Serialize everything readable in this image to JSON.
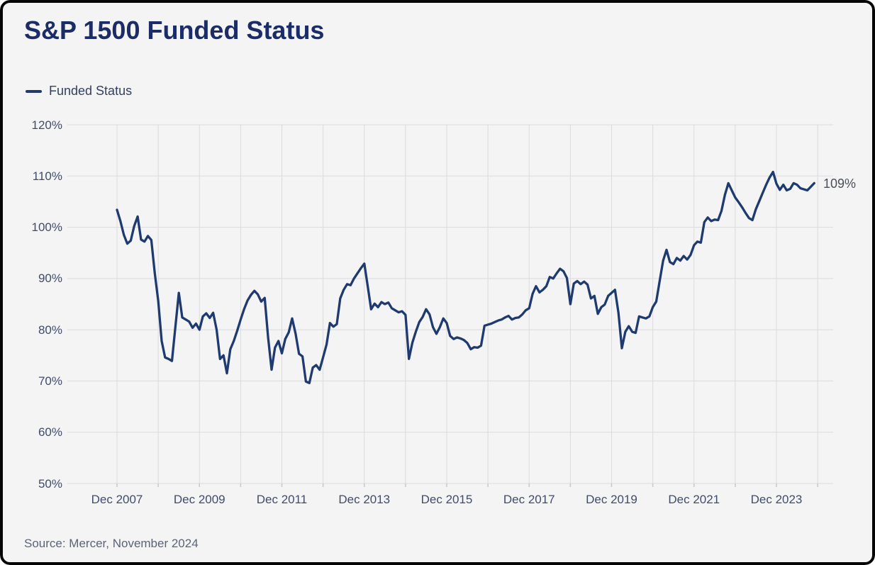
{
  "card": {
    "title": "S&P 1500 Funded Status",
    "source": "Source: Mercer, November 2024"
  },
  "legend": {
    "label": "Funded Status"
  },
  "colors": {
    "line": "#1e3a6e",
    "title": "#1b2c66",
    "axis_label": "#404c6b",
    "grid": "#dbdbde",
    "tick": "#c7c9cd",
    "end_label": "#4b4f58",
    "background": "#f4f4f5",
    "border": "#060606"
  },
  "chart_data": {
    "type": "line",
    "title": "S&P 1500 Funded Status",
    "x_start": "Dec 2007",
    "x_end": "Nov 2024",
    "x_frequency": "monthly",
    "x_tick_labels": [
      "Dec 2007",
      "Dec 2009",
      "Dec 2011",
      "Dec 2013",
      "Dec 2015",
      "Dec 2017",
      "Dec 2019",
      "Dec 2021",
      "Dec 2023"
    ],
    "x_tick_month_indices": [
      0,
      24,
      48,
      72,
      96,
      120,
      144,
      168,
      192
    ],
    "year_gridline_step_months": 12,
    "y_tick_labels": [
      "120%",
      "110%",
      "100%",
      "90%",
      "80%",
      "70%",
      "60%",
      "50%"
    ],
    "ylim": [
      50,
      120
    ],
    "grid": true,
    "legend_position": "top-left",
    "end_label": "109%",
    "series": [
      {
        "name": "Funded Status",
        "color": "#1e3a6e",
        "values": [
          103.4,
          101.2,
          98.5,
          96.8,
          97.4,
          100.2,
          102.1,
          97.6,
          97.2,
          98.3,
          97.5,
          91.0,
          85.7,
          77.8,
          74.6,
          74.3,
          73.9,
          80.5,
          87.2,
          82.4,
          82.0,
          81.6,
          80.4,
          81.2,
          80.0,
          82.6,
          83.2,
          82.3,
          83.3,
          80.0,
          74.3,
          75.0,
          71.5,
          76.2,
          77.8,
          79.8,
          82.0,
          84.0,
          85.7,
          86.8,
          87.6,
          86.9,
          85.5,
          86.2,
          78.5,
          72.2,
          76.5,
          77.8,
          75.4,
          78.2,
          79.5,
          82.2,
          79.2,
          75.3,
          74.8,
          69.9,
          69.6,
          72.6,
          73.1,
          72.2,
          74.6,
          77.1,
          81.3,
          80.6,
          81.1,
          86.1,
          87.8,
          88.9,
          88.7,
          90.0,
          91.0,
          92.0,
          92.9,
          88.5,
          84.0,
          85.1,
          84.4,
          85.4,
          85.0,
          85.3,
          84.2,
          83.8,
          83.4,
          83.6,
          82.9,
          74.3,
          77.5,
          79.6,
          81.5,
          82.5,
          84.0,
          83.0,
          80.5,
          79.2,
          80.5,
          82.2,
          81.3,
          78.8,
          78.2,
          78.5,
          78.3,
          78.0,
          77.4,
          76.2,
          76.6,
          76.5,
          76.9,
          80.8,
          81.0,
          81.2,
          81.5,
          81.8,
          82.0,
          82.4,
          82.7,
          82.0,
          82.3,
          82.4,
          83.0,
          83.8,
          84.2,
          87.0,
          88.5,
          87.3,
          87.8,
          88.5,
          90.3,
          90.0,
          91.0,
          91.9,
          91.4,
          90.1,
          85.0,
          89.0,
          89.5,
          88.9,
          89.4,
          88.8,
          86.1,
          86.6,
          83.1,
          84.4,
          84.9,
          86.6,
          87.2,
          87.8,
          83.3,
          76.4,
          79.6,
          80.7,
          79.6,
          79.4,
          82.6,
          82.4,
          82.2,
          82.6,
          84.4,
          85.5,
          89.5,
          93.5,
          95.6,
          93.2,
          92.8,
          94.0,
          93.5,
          94.4,
          93.7,
          94.6,
          96.5,
          97.2,
          97.0,
          101.0,
          101.9,
          101.2,
          101.5,
          101.4,
          103.2,
          106.3,
          108.6,
          107.2,
          105.8,
          104.9,
          103.9,
          102.8,
          101.8,
          101.4,
          103.5,
          105.1,
          106.7,
          108.3,
          109.7,
          110.8,
          108.5,
          107.3,
          108.3,
          107.2,
          107.5,
          108.6,
          108.3,
          107.6,
          107.4,
          107.2,
          107.9,
          108.6
        ]
      }
    ]
  }
}
